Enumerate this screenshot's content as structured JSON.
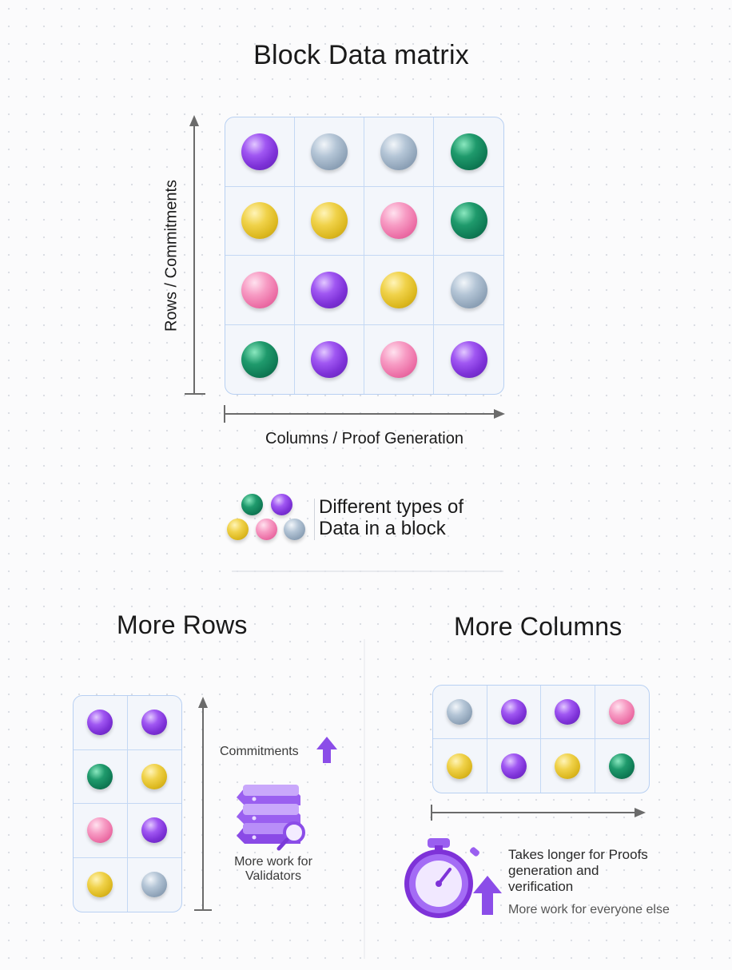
{
  "title": "Block Data matrix",
  "y_axis_label": "Rows / Commitments",
  "x_axis_label": "Columns / Proof Generation",
  "legend_text": [
    "Different types of",
    "Data in a block"
  ],
  "legend_balls": [
    "green",
    "purple",
    "yellow",
    "pink",
    "silver"
  ],
  "main_matrix": [
    [
      "purple",
      "silver",
      "silver",
      "green"
    ],
    [
      "yellow",
      "yellow",
      "pink",
      "green"
    ],
    [
      "pink",
      "purple",
      "yellow",
      "silver"
    ],
    [
      "green",
      "purple",
      "pink",
      "purple"
    ]
  ],
  "more_rows": {
    "title": "More Rows",
    "matrix": [
      [
        "purple",
        "purple"
      ],
      [
        "green",
        "yellow"
      ],
      [
        "pink",
        "purple"
      ],
      [
        "yellow",
        "silver"
      ]
    ],
    "commitments_label": "Commitments",
    "work_text": [
      "More work for",
      "Validators"
    ]
  },
  "more_columns": {
    "title": "More Columns",
    "matrix": [
      [
        "silver",
        "purple",
        "purple",
        "pink"
      ],
      [
        "yellow",
        "purple",
        "yellow",
        "green"
      ]
    ],
    "proofs_text": [
      "Takes longer for Proofs",
      "generation and",
      "verification"
    ],
    "everyone_text": "More work for everyone else"
  },
  "colors": {
    "axis": "#6b6b6b",
    "grid_border": "#b8d0f2",
    "arrow_purple": "#8b4de8",
    "divider": "#e2e4ea"
  }
}
